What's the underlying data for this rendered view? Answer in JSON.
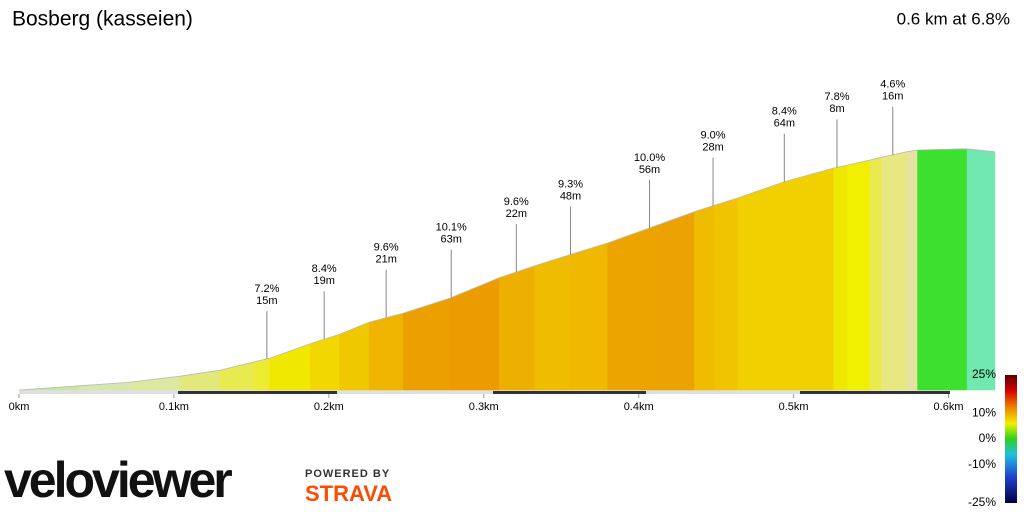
{
  "title": "Bosberg (kasseien)",
  "summary": "0.6 km at 6.8%",
  "chart_data": {
    "type": "area",
    "x": [
      0,
      0.039,
      0.072,
      0.104,
      0.13,
      0.152,
      0.162,
      0.188,
      0.207,
      0.226,
      0.248,
      0.278,
      0.31,
      0.333,
      0.355,
      0.38,
      0.407,
      0.436,
      0.449,
      0.464,
      0.494,
      0.526,
      0.535,
      0.549,
      0.557,
      0.573,
      0.58,
      0.612,
      0.63
    ],
    "values": [
      0,
      0.7,
      1.3,
      2.3,
      3.3,
      4.7,
      5.3,
      7.7,
      9.3,
      11.3,
      12.8,
      15.3,
      18.7,
      20.7,
      22.5,
      24.5,
      27,
      29.7,
      30.8,
      32,
      34.7,
      37,
      37.5,
      38.3,
      38.8,
      39.7,
      40,
      40.2,
      39.7
    ],
    "segment_colors": [
      "#c8e6a0",
      "#d6e8b0",
      "#dee8a0",
      "#e2e87a",
      "#e8ea50",
      "#eeec30",
      "#f0e800",
      "#f2d800",
      "#f0c800",
      "#eeb400",
      "#eca000",
      "#ec9c00",
      "#eeb000",
      "#f0bc00",
      "#f0b800",
      "#eca400",
      "#eca200",
      "#f0bc00",
      "#f0c400",
      "#f2d000",
      "#f2d000",
      "#eee800",
      "#f0f000",
      "#eaea50",
      "#e8e880",
      "#e4e4a0",
      "#3ee030",
      "#70e8b0"
    ],
    "xlim": [
      0,
      0.63
    ],
    "xticks": [
      {
        "value": 0,
        "label": "0km"
      },
      {
        "value": 0.1,
        "label": "0.1km"
      },
      {
        "value": 0.2,
        "label": "0.2km"
      },
      {
        "value": 0.3,
        "label": "0.3km"
      },
      {
        "value": 0.4,
        "label": "0.4km"
      },
      {
        "value": 0.5,
        "label": "0.5km"
      },
      {
        "value": 0.6,
        "label": "0.6km"
      }
    ],
    "annotations": [
      {
        "x": 0.16,
        "grade": "7.2%",
        "length": "15m"
      },
      {
        "x": 0.197,
        "grade": "8.4%",
        "length": "19m"
      },
      {
        "x": 0.237,
        "grade": "9.6%",
        "length": "21m"
      },
      {
        "x": 0.279,
        "grade": "10.1%",
        "length": "63m"
      },
      {
        "x": 0.321,
        "grade": "9.6%",
        "length": "22m"
      },
      {
        "x": 0.356,
        "grade": "9.3%",
        "length": "48m"
      },
      {
        "x": 0.407,
        "grade": "10.0%",
        "length": "56m"
      },
      {
        "x": 0.448,
        "grade": "9.0%",
        "length": "28m"
      },
      {
        "x": 0.494,
        "grade": "8.4%",
        "length": "64m"
      },
      {
        "x": 0.528,
        "grade": "7.8%",
        "length": "8m"
      },
      {
        "x": 0.564,
        "grade": "4.6%",
        "length": "16m"
      }
    ],
    "legend": {
      "lim": [
        -25,
        25
      ],
      "ticks": [
        {
          "value": 25,
          "label": "25%"
        },
        {
          "value": 10,
          "label": "10%"
        },
        {
          "value": 0,
          "label": "0%"
        },
        {
          "value": -10,
          "label": "-10%"
        },
        {
          "value": -25,
          "label": "-25%"
        }
      ]
    }
  },
  "branding": {
    "logo": "veloviewer",
    "powered": "POWERED BY",
    "strava": "STRAVA"
  }
}
